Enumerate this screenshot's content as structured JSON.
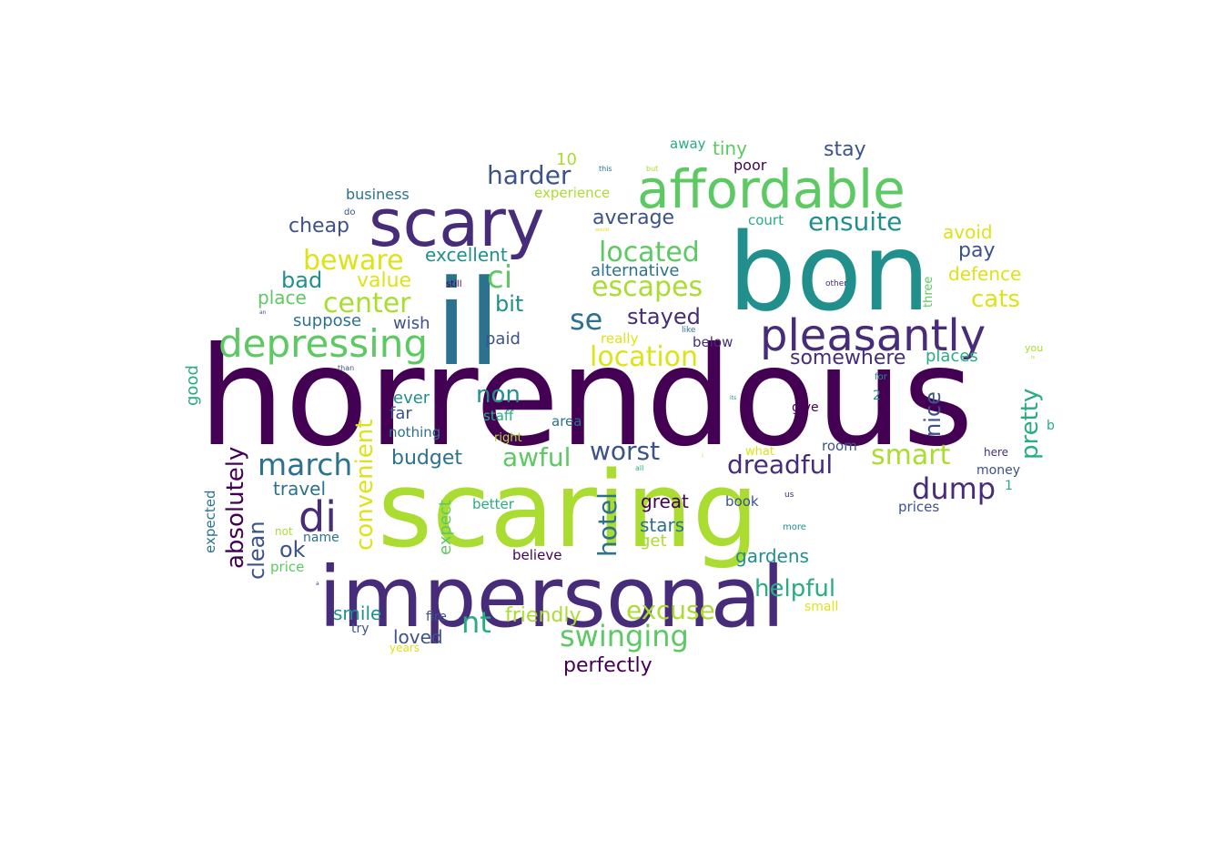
{
  "wordcloud": {
    "palette": {
      "dpurple": "#440154",
      "purple": "#472c7a",
      "indigo": "#3b528b",
      "blue": "#2c728e",
      "teal": "#21908d",
      "green": "#27ad81",
      "lgreen": "#5dc963",
      "lime": "#aadc32",
      "yellow": "#dde318"
    },
    "words": [
      {
        "text": "horrendous",
        "color": "dpurple"
      },
      {
        "text": "scaring",
        "color": "lime"
      },
      {
        "text": "bon",
        "color": "teal"
      },
      {
        "text": "il",
        "color": "blue"
      },
      {
        "text": "impersonal",
        "color": "purple"
      },
      {
        "text": "scary",
        "color": "purple"
      },
      {
        "text": "affordable",
        "color": "lgreen"
      },
      {
        "text": "pleasantly",
        "color": "purple"
      },
      {
        "text": "depressing",
        "color": "lgreen"
      },
      {
        "text": "di",
        "color": "purple"
      },
      {
        "text": "march",
        "color": "blue"
      },
      {
        "text": "located",
        "color": "lgreen"
      },
      {
        "text": "escapes",
        "color": "lime"
      },
      {
        "text": "location",
        "color": "yellow"
      },
      {
        "text": "swinging",
        "color": "lgreen"
      },
      {
        "text": "center",
        "color": "lime"
      },
      {
        "text": "beware",
        "color": "yellow"
      },
      {
        "text": "harder",
        "color": "indigo"
      },
      {
        "text": "ensuite",
        "color": "teal"
      },
      {
        "text": "ci",
        "color": "lgreen"
      },
      {
        "text": "se",
        "color": "blue"
      },
      {
        "text": "awful",
        "color": "lgreen"
      },
      {
        "text": "worst",
        "color": "indigo"
      },
      {
        "text": "dreadful",
        "color": "purple"
      },
      {
        "text": "smart",
        "color": "lime"
      },
      {
        "text": "dump",
        "color": "purple"
      },
      {
        "text": "nt",
        "color": "green"
      },
      {
        "text": "excuse",
        "color": "lime"
      },
      {
        "text": "hotel",
        "color": "blue"
      },
      {
        "text": "convenient",
        "color": "yellow"
      },
      {
        "text": "absolutely",
        "color": "dpurple"
      },
      {
        "text": "pretty",
        "color": "green"
      },
      {
        "text": "helpful",
        "color": "green"
      },
      {
        "text": "stayed",
        "color": "purple"
      },
      {
        "text": "non",
        "color": "teal"
      },
      {
        "text": "somewhere",
        "color": "purple"
      },
      {
        "text": "cats",
        "color": "yellow"
      },
      {
        "text": "perfectly",
        "color": "dpurple"
      },
      {
        "text": "stay",
        "color": "indigo"
      },
      {
        "text": "average",
        "color": "indigo"
      },
      {
        "text": "budget",
        "color": "blue"
      },
      {
        "text": "clean",
        "color": "indigo"
      },
      {
        "text": "bad",
        "color": "teal"
      },
      {
        "text": "ok",
        "color": "indigo"
      },
      {
        "text": "bit",
        "color": "teal"
      },
      {
        "text": "cheap",
        "color": "indigo"
      },
      {
        "text": "value",
        "color": "yellow"
      },
      {
        "text": "friendly",
        "color": "lime"
      },
      {
        "text": "excellent",
        "color": "teal"
      },
      {
        "text": "nice",
        "color": "indigo"
      },
      {
        "text": "loved",
        "color": "indigo"
      },
      {
        "text": "smile",
        "color": "teal"
      },
      {
        "text": "gardens",
        "color": "teal"
      },
      {
        "text": "avoid",
        "color": "yellow"
      },
      {
        "text": "pay",
        "color": "indigo"
      },
      {
        "text": "defence",
        "color": "yellow"
      },
      {
        "text": "tiny",
        "color": "lgreen"
      },
      {
        "text": "alternative",
        "color": "blue"
      },
      {
        "text": "stars",
        "color": "blue"
      },
      {
        "text": "great",
        "color": "dpurple"
      },
      {
        "text": "travel",
        "color": "blue"
      },
      {
        "text": "place",
        "color": "lgreen"
      },
      {
        "text": "suppose",
        "color": "blue"
      },
      {
        "text": "wish",
        "color": "indigo"
      },
      {
        "text": "good",
        "color": "green"
      },
      {
        "text": "places",
        "color": "green"
      },
      {
        "text": "paid",
        "color": "indigo"
      },
      {
        "text": "ever",
        "color": "teal"
      },
      {
        "text": "expect",
        "color": "lgreen"
      },
      {
        "text": "far",
        "color": "indigo"
      },
      {
        "text": "business",
        "color": "blue"
      },
      {
        "text": "experience",
        "color": "lime"
      },
      {
        "text": "poor",
        "color": "dpurple"
      },
      {
        "text": "away",
        "color": "green"
      },
      {
        "text": "court",
        "color": "green"
      },
      {
        "text": "10",
        "color": "lime"
      },
      {
        "text": "expected",
        "color": "blue"
      },
      {
        "text": "get",
        "color": "lime"
      },
      {
        "text": "book",
        "color": "indigo"
      },
      {
        "text": "prices",
        "color": "indigo"
      },
      {
        "text": "money",
        "color": "indigo"
      },
      {
        "text": "believe",
        "color": "dpurple"
      },
      {
        "text": "price",
        "color": "lgreen"
      },
      {
        "text": "name",
        "color": "blue"
      },
      {
        "text": "staff",
        "color": "green"
      },
      {
        "text": "area",
        "color": "blue"
      },
      {
        "text": "nothing",
        "color": "blue"
      },
      {
        "text": "really",
        "color": "yellow"
      },
      {
        "text": "below",
        "color": "purple"
      },
      {
        "text": "room",
        "color": "indigo"
      },
      {
        "text": "better",
        "color": "green"
      },
      {
        "text": "right",
        "color": "lime"
      },
      {
        "text": "fire",
        "color": "indigo"
      },
      {
        "text": "try",
        "color": "indigo"
      },
      {
        "text": "small",
        "color": "yellow"
      },
      {
        "text": "give",
        "color": "dpurple"
      },
      {
        "text": "what",
        "color": "yellow"
      },
      {
        "text": "here",
        "color": "purple"
      },
      {
        "text": "three",
        "color": "lgreen"
      },
      {
        "text": "2",
        "color": "teal"
      },
      {
        "text": "1",
        "color": "green"
      },
      {
        "text": "b",
        "color": "green"
      },
      {
        "text": "you",
        "color": "lime"
      },
      {
        "text": "not",
        "color": "lime"
      },
      {
        "text": "years",
        "color": "yellow"
      },
      {
        "text": "still",
        "color": "dpurple"
      },
      {
        "text": "do",
        "color": "indigo"
      },
      {
        "text": "for",
        "color": "teal"
      },
      {
        "text": "than",
        "color": "indigo"
      },
      {
        "text": "other",
        "color": "purple"
      },
      {
        "text": "like",
        "color": "blue"
      },
      {
        "text": "this",
        "color": "blue"
      },
      {
        "text": "but",
        "color": "lime"
      },
      {
        "text": "all",
        "color": "green"
      },
      {
        "text": "us",
        "color": "purple"
      },
      {
        "text": "more",
        "color": "teal"
      },
      {
        "text": "its",
        "color": "teal"
      },
      {
        "text": "an",
        "color": "indigo"
      },
      {
        "text": "a",
        "color": "indigo"
      },
      {
        "text": "i",
        "color": "yellow"
      },
      {
        "text": "would",
        "color": "yellow"
      },
      {
        "text": "is",
        "color": "lime"
      }
    ]
  }
}
